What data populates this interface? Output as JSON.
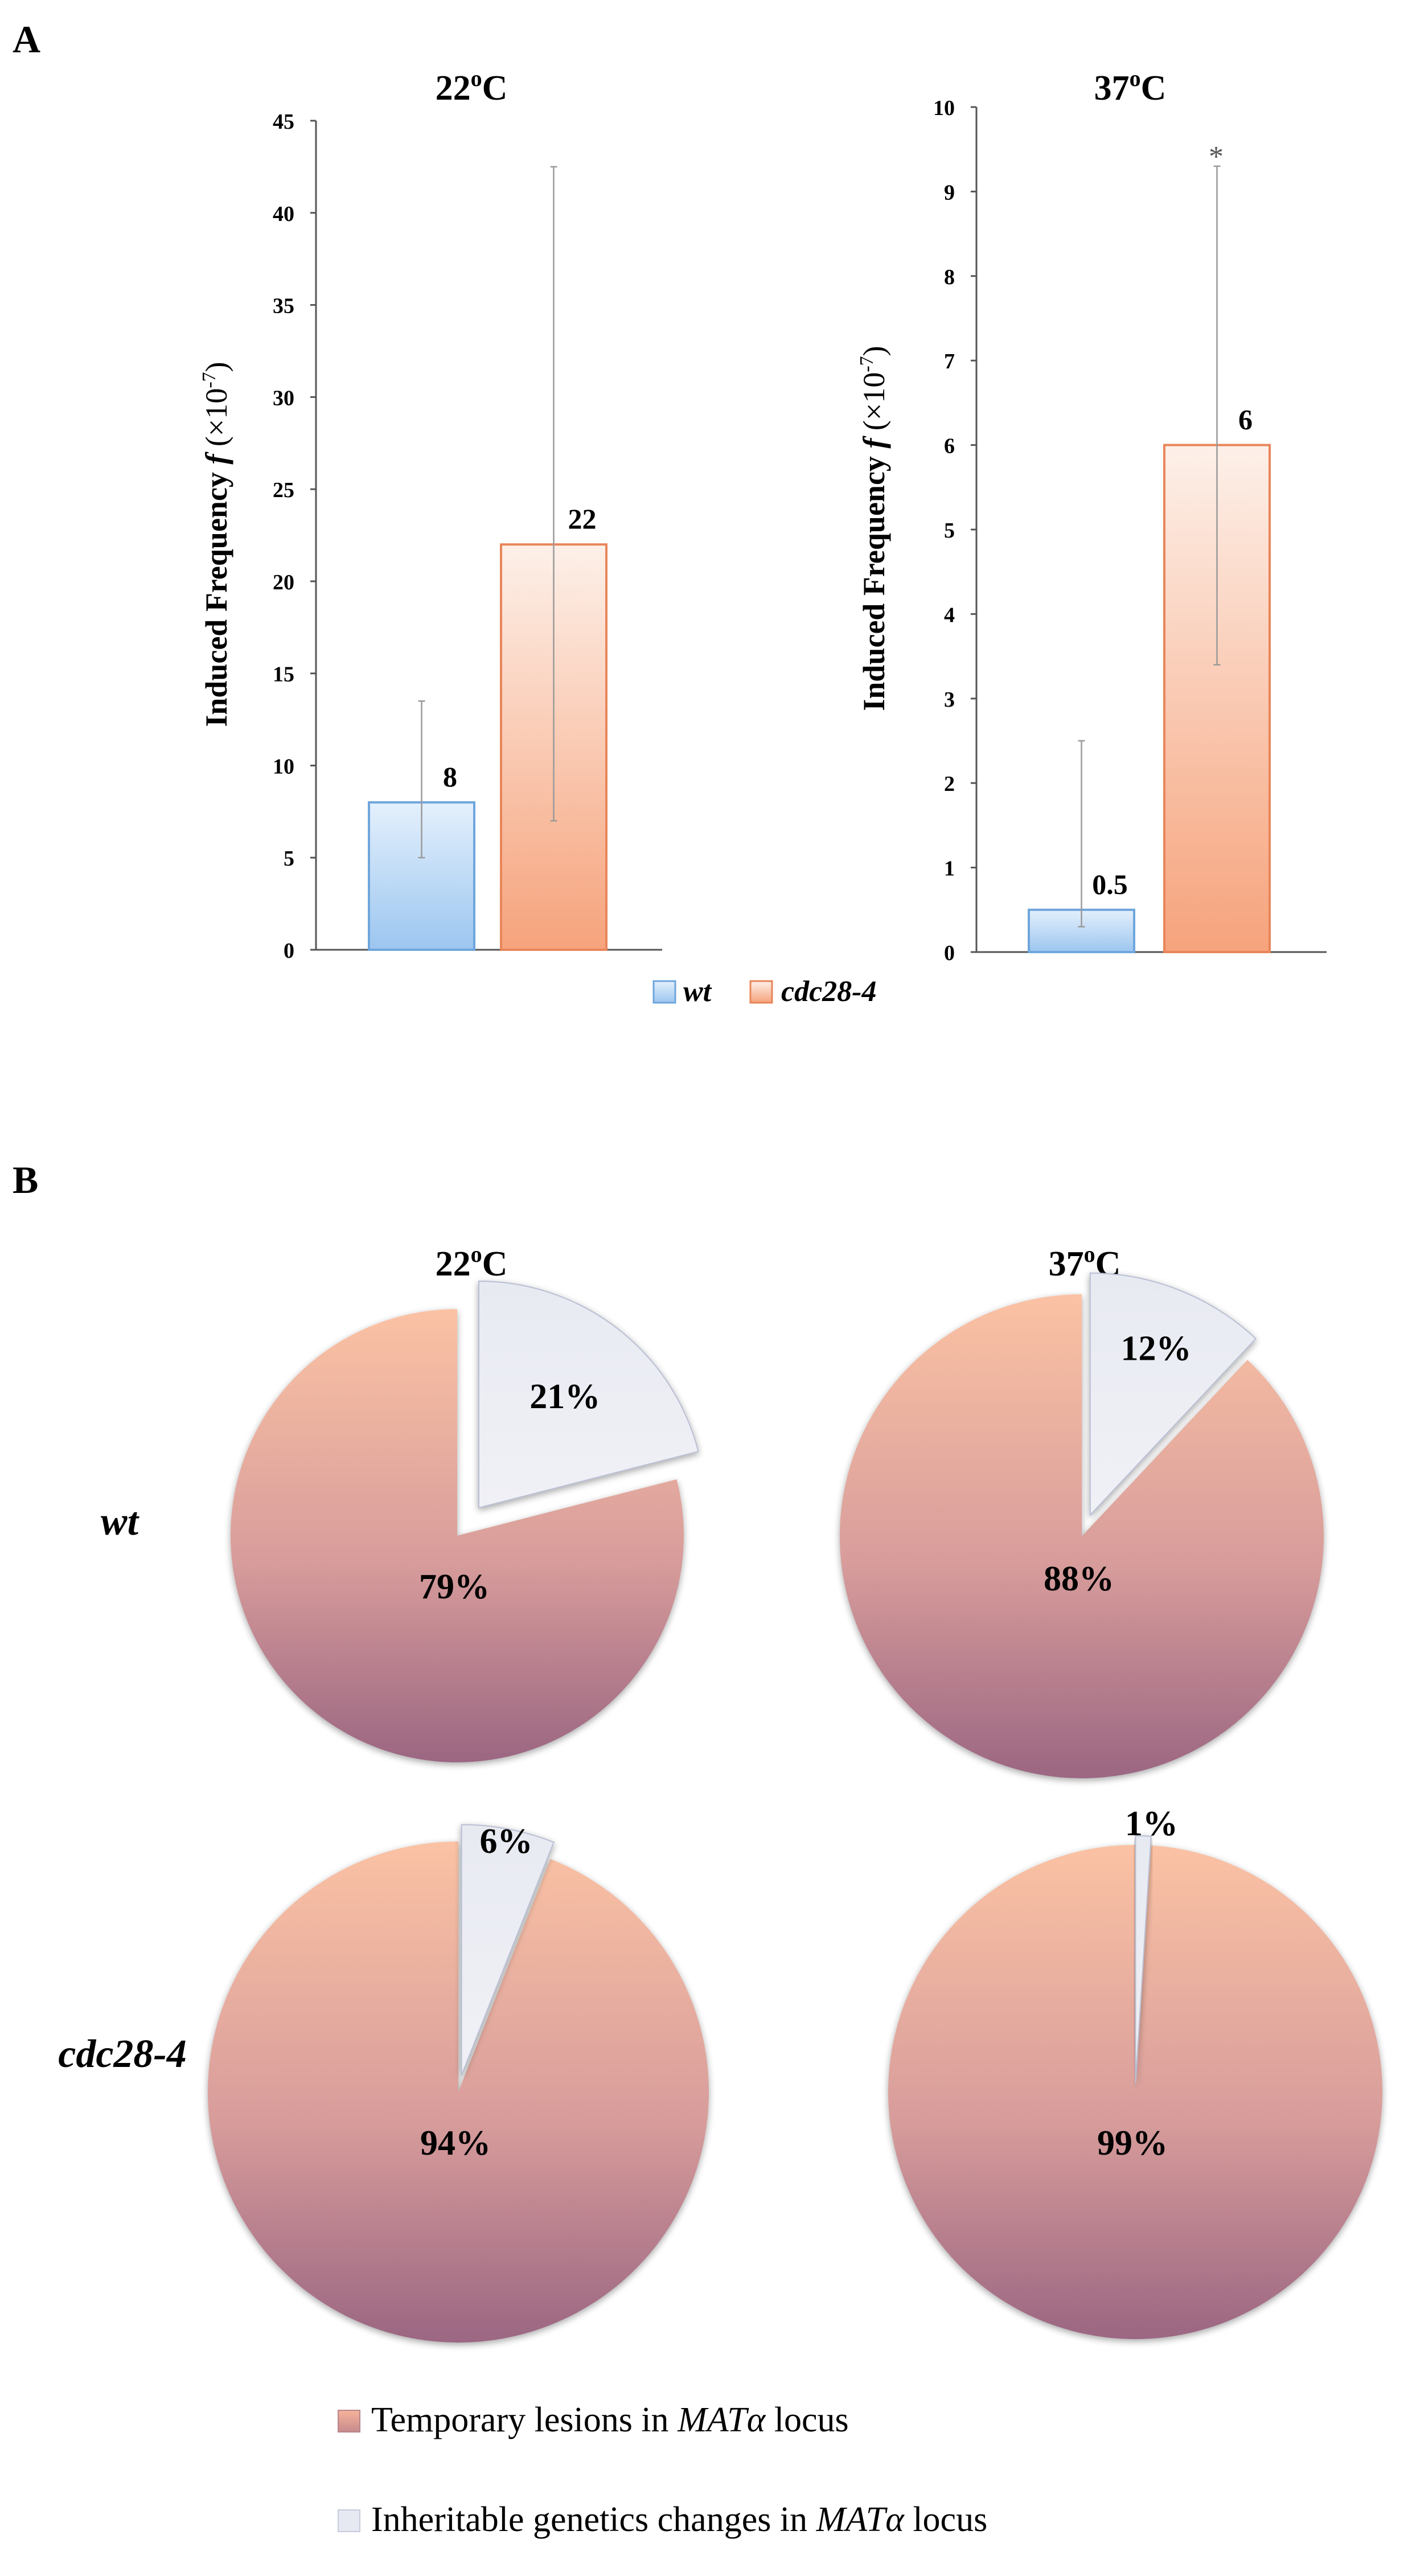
{
  "panels": {
    "a": {
      "label": "A"
    },
    "b": {
      "label": "B"
    }
  },
  "chart_data": [
    {
      "type": "bar",
      "title": "22oC",
      "title_main": "22",
      "title_sup": "o",
      "title_end": "C",
      "categories": [
        "wt",
        "cdc28-4"
      ],
      "values": [
        8,
        22
      ],
      "error_low": [
        5,
        7
      ],
      "error_high": [
        13.5,
        42.5
      ],
      "data_labels": [
        "8",
        "22"
      ],
      "ylabel": "Induced Frequency f (×10-7)",
      "ylabel_pre": "Induced Frequency ",
      "ylabel_f": "f",
      "ylabel_mid": " (×10",
      "ylabel_sup": "-7",
      "ylabel_end": ")",
      "ylim": [
        0,
        45
      ],
      "yticks": [
        "0",
        "5",
        "10",
        "15",
        "20",
        "25",
        "30",
        "35",
        "40",
        "45"
      ],
      "colors": [
        "#a9cdf2",
        "#f7b28f"
      ]
    },
    {
      "type": "bar",
      "title": "37oC",
      "title_main": "37",
      "title_sup": "o",
      "title_end": "C",
      "categories": [
        "wt",
        "cdc28-4"
      ],
      "values": [
        0.5,
        6
      ],
      "error_low": [
        0.3,
        3.4
      ],
      "error_high": [
        2.5,
        9.3
      ],
      "data_labels": [
        "0.5",
        "6"
      ],
      "annotation": "*",
      "ylabel": "Induced Frequency f (×10-7)",
      "ylabel_pre": "Induced Frequency ",
      "ylabel_f": "f",
      "ylabel_mid": " (×10",
      "ylabel_sup": "-7",
      "ylabel_end": ")",
      "ylim": [
        0,
        10
      ],
      "yticks": [
        "0",
        "1",
        "2",
        "3",
        "4",
        "5",
        "6",
        "7",
        "8",
        "9",
        "10"
      ],
      "colors": [
        "#a9cdf2",
        "#f7b28f"
      ]
    },
    {
      "type": "pie",
      "row": "wt",
      "column": "22oC",
      "labels": [
        "Temporary lesions in MATα locus",
        "Inheritable genetics changes in MATα locus"
      ],
      "values": [
        79,
        21
      ],
      "data_labels": [
        "79%",
        "21%"
      ]
    },
    {
      "type": "pie",
      "row": "wt",
      "column": "37oC",
      "labels": [
        "Temporary lesions in MATα locus",
        "Inheritable genetics changes in MATα locus"
      ],
      "values": [
        88,
        12
      ],
      "data_labels": [
        "88%",
        "12%"
      ]
    },
    {
      "type": "pie",
      "row": "cdc28-4",
      "column": "22oC",
      "labels": [
        "Temporary lesions in MATα locus",
        "Inheritable genetics changes in MATα locus"
      ],
      "values": [
        94,
        6
      ],
      "data_labels": [
        "94%",
        "6%"
      ]
    },
    {
      "type": "pie",
      "row": "cdc28-4",
      "column": "37oC",
      "labels": [
        "Temporary lesions in MATα locus",
        "Inheritable genetics changes in MATα locus"
      ],
      "values": [
        99,
        1
      ],
      "data_labels": [
        "99%",
        "1%"
      ]
    }
  ],
  "legend_a": {
    "items": [
      {
        "label": "wt",
        "color": "#a9cdf2"
      },
      {
        "label": "cdc28-4",
        "color": "#f7b28f"
      }
    ]
  },
  "pie_headers": {
    "col1_main": "22",
    "col1_sup": "o",
    "col1_end": "C",
    "col2_main": "37",
    "col2_sup": "o",
    "col2_end": "C",
    "row1": "wt",
    "row2": "cdc28-4"
  },
  "legend_b": {
    "item1_pre": "Temporary lesions in ",
    "item1_locus": "MATα",
    "item1_post": " locus",
    "item2_pre": "Inheritable genetics changes in ",
    "item2_locus": "MATα",
    "item2_post": " locus",
    "colors": [
      "#e8a78e",
      "#e6e9f2"
    ]
  }
}
